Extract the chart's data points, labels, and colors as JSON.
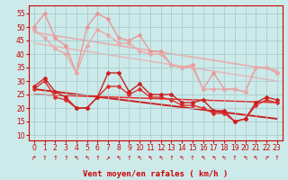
{
  "x": [
    0,
    1,
    2,
    3,
    4,
    5,
    6,
    7,
    8,
    9,
    10,
    11,
    12,
    13,
    14,
    15,
    16,
    17,
    18,
    19,
    20,
    21,
    22,
    23
  ],
  "series": [
    {
      "label": "rafales_upper",
      "y": [
        50,
        55,
        46,
        43,
        33,
        50,
        55,
        53,
        46,
        45,
        47,
        41,
        41,
        36,
        35,
        36,
        27,
        33,
        27,
        27,
        26,
        35,
        35,
        33
      ],
      "color": "#e89898",
      "lw": 1.0,
      "marker": "D",
      "ms": 2.0,
      "zorder": 3
    },
    {
      "label": "rafales_lower",
      "y": [
        49,
        46,
        42,
        40,
        33,
        43,
        49,
        47,
        44,
        44,
        41,
        40,
        40,
        36,
        35,
        35,
        27,
        27,
        27,
        27,
        26,
        35,
        35,
        33
      ],
      "color": "#e8a8a8",
      "lw": 1.0,
      "marker": "D",
      "ms": 2.0,
      "zorder": 3
    },
    {
      "label": "moyen_upper",
      "y": [
        28,
        31,
        26,
        24,
        20,
        20,
        24,
        33,
        33,
        26,
        29,
        25,
        25,
        25,
        22,
        22,
        23,
        19,
        19,
        15,
        16,
        22,
        24,
        23
      ],
      "color": "#cc2020",
      "lw": 1.0,
      "marker": "D",
      "ms": 2.0,
      "zorder": 4
    },
    {
      "label": "moyen_lower",
      "y": [
        27,
        30,
        24,
        23,
        20,
        20,
        24,
        28,
        28,
        25,
        27,
        24,
        24,
        23,
        21,
        21,
        20,
        18,
        18,
        15,
        16,
        21,
        23,
        22
      ],
      "color": "#dd3030",
      "lw": 1.0,
      "marker": "D",
      "ms": 2.0,
      "zorder": 3
    }
  ],
  "trend_lines": [
    {
      "x0": 0,
      "y0": 48,
      "x1": 23,
      "y1": 34,
      "color": "#e8b0b0",
      "lw": 1.3
    },
    {
      "x0": 0,
      "y0": 44,
      "x1": 23,
      "y1": 30,
      "color": "#e8b8b8",
      "lw": 1.1
    },
    {
      "x0": 0,
      "y0": 27,
      "x1": 23,
      "y1": 16,
      "color": "#cc2020",
      "lw": 1.4
    },
    {
      "x0": 0,
      "y0": 25,
      "x1": 23,
      "y1": 22,
      "color": "#dd3030",
      "lw": 1.1
    }
  ],
  "wind_symbols": [
    "↱",
    "↑",
    "↑",
    "↑",
    "↰",
    "↰",
    "↑",
    "↗",
    "↰",
    "↑",
    "↰",
    "↰",
    "↰",
    "↑",
    "↰",
    "↑",
    "↰",
    "↰",
    "↰",
    "↑",
    "↰",
    "↰",
    "↱",
    "↑"
  ],
  "xlabel": "Vent moyen/en rafales ( km/h )",
  "ylabel_ticks": [
    10,
    15,
    20,
    25,
    30,
    35,
    40,
    45,
    50,
    55
  ],
  "xlim": [
    -0.5,
    23.5
  ],
  "ylim": [
    8,
    58
  ],
  "bg_color": "#cceaea",
  "grid_color": "#aacccc",
  "text_color": "#cc0000",
  "xlabel_fontsize": 6.5,
  "tick_fontsize": 5.5
}
